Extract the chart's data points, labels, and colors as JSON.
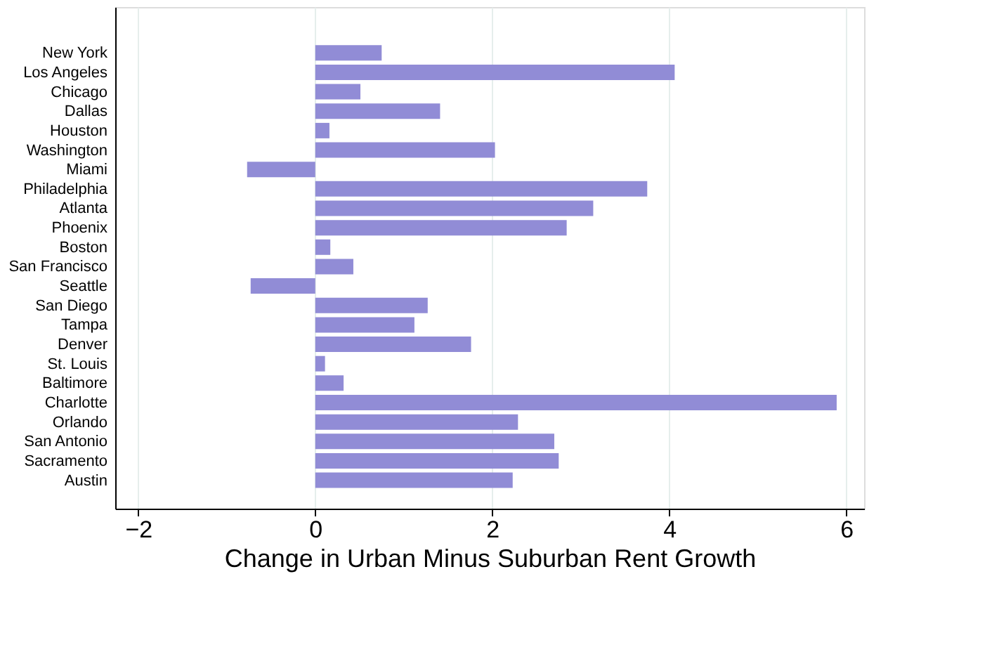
{
  "chart_data": {
    "type": "bar",
    "orientation": "horizontal",
    "xlabel": "Change in Urban Minus Suburban Rent Growth",
    "categories": [
      "New York",
      "Los Angeles",
      "Chicago",
      "Dallas",
      "Houston",
      "Washington",
      "Miami",
      "Philadelphia",
      "Atlanta",
      "Phoenix",
      "Boston",
      "San Francisco",
      "Seattle",
      "San Diego",
      "Tampa",
      "Denver",
      "St. Louis",
      "Baltimore",
      "Charlotte",
      "Orlando",
      "San Antonio",
      "Sacramento",
      "Austin"
    ],
    "values": [
      0.75,
      4.06,
      0.51,
      1.41,
      0.16,
      2.03,
      -0.77,
      3.75,
      3.14,
      2.84,
      0.17,
      0.43,
      -0.73,
      1.27,
      1.12,
      1.76,
      0.11,
      0.32,
      5.89,
      2.29,
      2.7,
      2.75,
      2.23
    ],
    "color": "#918cd6",
    "xlim": [
      -2.26,
      6.2
    ],
    "xticks": [
      -2,
      0,
      2,
      4,
      6
    ],
    "grid": "x"
  }
}
